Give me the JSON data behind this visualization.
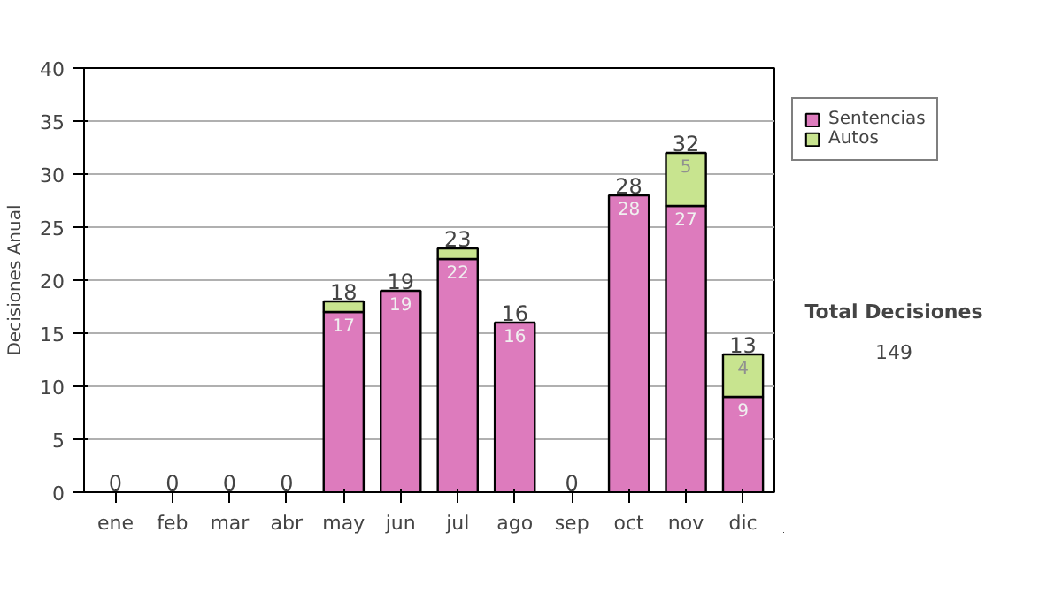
{
  "chart_data": {
    "type": "bar",
    "stacked": true,
    "ylabel": "Decisiones Anual",
    "categories": [
      "ene",
      "feb",
      "mar",
      "abr",
      "may",
      "jun",
      "jul",
      "ago",
      "sep",
      "oct",
      "nov",
      "dic"
    ],
    "series": [
      {
        "name": "Sentencias",
        "color": "#dd7bbd",
        "values": [
          0,
          0,
          0,
          0,
          17,
          19,
          22,
          16,
          0,
          28,
          27,
          9
        ],
        "value_labels": [
          null,
          null,
          null,
          null,
          "17",
          "19",
          "22",
          "16",
          null,
          "28",
          "27",
          "9"
        ]
      },
      {
        "name": "Autos",
        "color": "#c8e48f",
        "values": [
          0,
          0,
          0,
          0,
          1,
          0,
          1,
          0,
          0,
          0,
          5,
          4
        ],
        "value_labels": [
          null,
          null,
          null,
          null,
          null,
          null,
          null,
          null,
          null,
          null,
          "5",
          "4"
        ]
      }
    ],
    "totals": [
      "0",
      "0",
      "0",
      "0",
      "18",
      "19",
      "23",
      "16",
      "0",
      "28",
      "32",
      "13"
    ],
    "ylim": [
      0,
      40
    ],
    "yticks": [
      0,
      5,
      10,
      15,
      20,
      25,
      30,
      35,
      40
    ],
    "grid": "y",
    "legend": "right",
    "annotations": [
      "Total Decisiones",
      "149"
    ]
  }
}
